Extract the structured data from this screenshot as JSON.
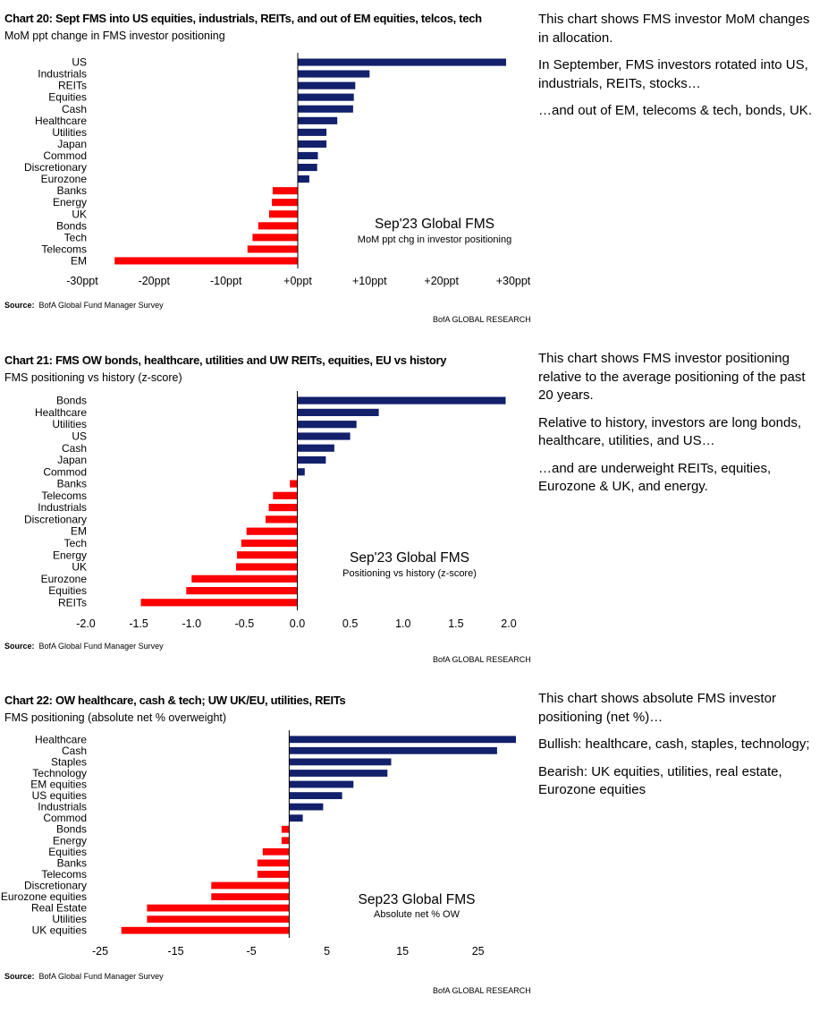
{
  "colors": {
    "positive": "#13206b",
    "negative": "#ff0000",
    "axis": "#000000"
  },
  "panels": [
    {
      "title": "Chart 20: Sept FMS into US equities, industrials, REITs, and out of EM equities, telcos, tech",
      "subtitle": "MoM ppt change in FMS investor positioning",
      "source_label": "Source:",
      "source_text": "BofA Global Fund Manager Survey",
      "brand": "BofA GLOBAL RESEARCH",
      "description": [
        "This chart shows FMS investor MoM changes in allocation.",
        "In September, FMS investors rotated into US, industrials, REITs, stocks…",
        "…and out of EM, telecoms & tech, bonds, UK."
      ]
    },
    {
      "title": "Chart 21: FMS OW bonds, healthcare, utilities and UW REITs, equities, EU vs history",
      "subtitle": "FMS positioning vs history (z-score)",
      "source_label": "Source:",
      "source_text": "BofA Global Fund Manager Survey",
      "brand": "BofA GLOBAL RESEARCH",
      "description": [
        "This chart shows FMS investor positioning relative to the average positioning of the past 20 years.",
        "Relative to history, investors are long bonds, healthcare, utilities, and US…",
        "…and are underweight REITs, equities, Eurozone & UK, and energy."
      ]
    },
    {
      "title": "Chart 22: OW healthcare, cash & tech; UW UK/EU, utilities, REITs",
      "subtitle": "FMS positioning (absolute net % overweight)",
      "source_label": "Source:",
      "source_text": "BofA Global Fund Manager Survey",
      "brand": "BofA GLOBAL RESEARCH",
      "description": [
        "This chart shows absolute FMS investor positioning (net %)…",
        "Bullish: healthcare, cash, staples, technology;",
        "Bearish: UK equities, utilities, real estate, Eurozone equities"
      ]
    }
  ],
  "chart_data": [
    {
      "type": "bar",
      "orientation": "horizontal",
      "title": "Chart 20: Sept FMS into US equities, industrials, REITs, and out of EM equities, telcos, tech",
      "subtitle": "MoM ppt change in FMS investor positioning",
      "annotation_title": "Sep'23 Global FMS",
      "annotation_sub": "MoM ppt chg in investor positioning",
      "categories": [
        "US",
        "Industrials",
        "REITs",
        "Equities",
        "Cash",
        "Healthcare",
        "Utilities",
        "Japan",
        "Commod",
        "Discretionary",
        "Eurozone",
        "Banks",
        "Energy",
        "UK",
        "Bonds",
        "Tech",
        "Telecoms",
        "EM"
      ],
      "values": [
        29,
        10,
        8,
        7.8,
        7.7,
        5.5,
        4,
        4,
        2.8,
        2.7,
        1.6,
        -3.5,
        -3.6,
        -4,
        -5.5,
        -6.3,
        -7,
        -25.5
      ],
      "xlim": [
        -30,
        30
      ],
      "ticks": [
        -30,
        -20,
        -10,
        0,
        10,
        20,
        30
      ],
      "tick_labels": [
        "-30ppt",
        "-20ppt",
        "-10ppt",
        "+0ppt",
        "+10ppt",
        "+20ppt",
        "+30ppt"
      ]
    },
    {
      "type": "bar",
      "orientation": "horizontal",
      "title": "Chart 21: FMS OW bonds, healthcare, utilities and UW REITs, equities, EU vs history",
      "subtitle": "FMS positioning vs history (z-score)",
      "annotation_title": "Sep'23 Global FMS",
      "annotation_sub": "Positioning vs history (z-score)",
      "categories": [
        "Bonds",
        "Healthcare",
        "Utilities",
        "US",
        "Cash",
        "Japan",
        "Commod",
        "Banks",
        "Telecoms",
        "Industrials",
        "Discretionary",
        "EM",
        "Tech",
        "Energy",
        "UK",
        "Eurozone",
        "Equities",
        "REITs"
      ],
      "values": [
        1.97,
        0.77,
        0.56,
        0.5,
        0.35,
        0.27,
        0.07,
        -0.07,
        -0.23,
        -0.27,
        -0.3,
        -0.48,
        -0.53,
        -0.57,
        -0.58,
        -1.0,
        -1.05,
        -1.48
      ],
      "xlim": [
        -2.0,
        2.0
      ],
      "ticks": [
        -2.0,
        -1.5,
        -1.0,
        -0.5,
        0.0,
        0.5,
        1.0,
        1.5,
        2.0
      ],
      "tick_labels": [
        "-2.0",
        "-1.5",
        "-1.0",
        "-0.5",
        "0.0",
        "0.5",
        "1.0",
        "1.5",
        "2.0"
      ]
    },
    {
      "type": "bar",
      "orientation": "horizontal",
      "title": "Chart 22: OW healthcare, cash & tech; UW UK/EU, utilities, REITs",
      "subtitle": "FMS positioning (absolute net % overweight)",
      "annotation_title": "Sep23 Global FMS",
      "annotation_sub": "Absolute net % OW",
      "categories": [
        "Healthcare",
        "Cash",
        "Staples",
        "Technology",
        "EM equities",
        "US equities",
        "Industrials",
        "Commod",
        "Bonds",
        "Energy",
        "Equities",
        "Banks",
        "Telecoms",
        "Discretionary",
        "Eurozone equities",
        "Real Estate",
        "Utilities",
        "UK equities"
      ],
      "values": [
        30,
        27.5,
        13.5,
        13,
        8.5,
        7,
        4.5,
        1.8,
        -1,
        -1,
        -3.5,
        -4.2,
        -4.2,
        -10.3,
        -10.3,
        -18.8,
        -18.8,
        -22.2
      ],
      "xlim": [
        -25,
        30
      ],
      "ticks": [
        -25,
        -15,
        -5,
        5,
        15,
        25
      ],
      "tick_labels": [
        "-25",
        "-15",
        "-5",
        "5",
        "15",
        "25"
      ]
    }
  ]
}
